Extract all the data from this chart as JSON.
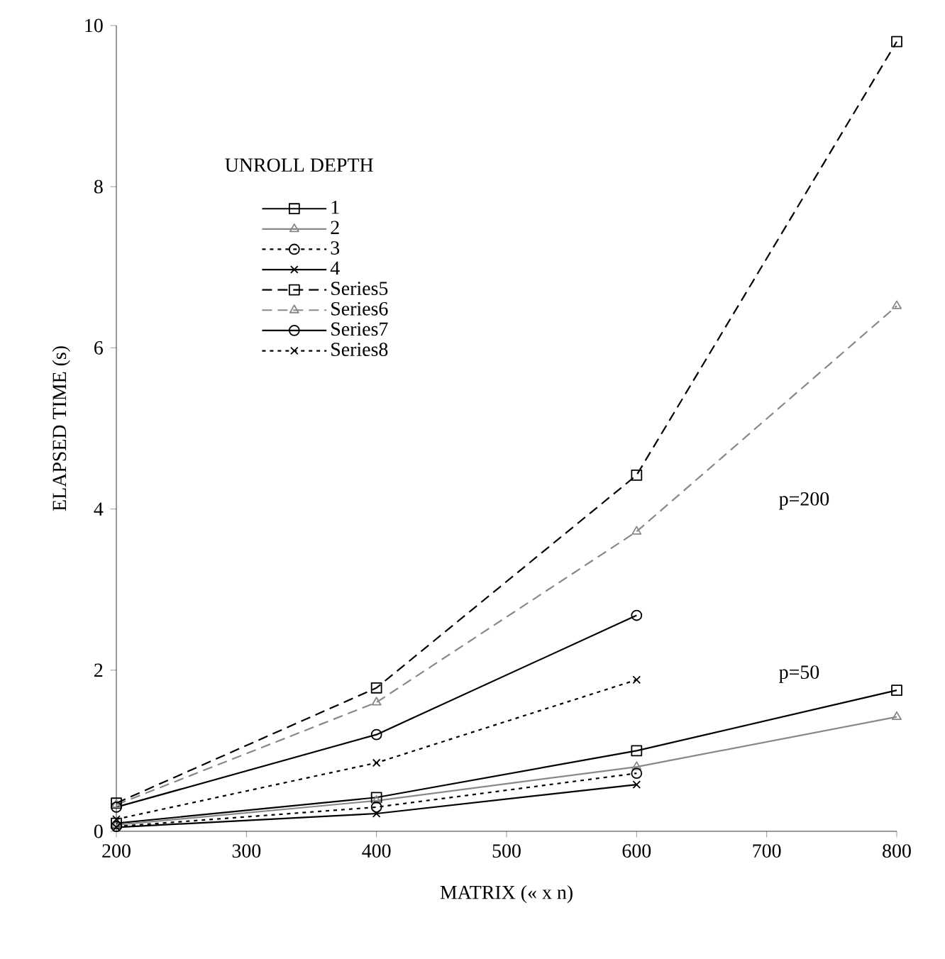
{
  "chart_data": {
    "type": "line",
    "xlabel": "MATRIX (« x n)",
    "ylabel": "ELAPSED TIME (s)",
    "legend_title": "UNROLL DEPTH",
    "x": [
      200,
      400,
      600,
      800
    ],
    "series": [
      {
        "name": "1",
        "color": "#000000",
        "marker": "square",
        "line_style": "solid",
        "values": [
          0.1,
          0.42,
          1.0,
          1.75
        ]
      },
      {
        "name": "2",
        "color": "#888888",
        "marker": "triangle",
        "line_style": "solid",
        "values": [
          0.08,
          0.38,
          0.8,
          1.42
        ]
      },
      {
        "name": "3",
        "color": "#000000",
        "marker": "circle",
        "line_style": "dotted",
        "values": [
          0.06,
          0.3,
          0.72,
          null
        ]
      },
      {
        "name": "4",
        "color": "#000000",
        "marker": "cross",
        "line_style": "solid",
        "values": [
          0.05,
          0.22,
          0.58,
          null
        ]
      },
      {
        "name": "Series5",
        "color": "#000000",
        "marker": "square",
        "line_style": "dashed",
        "values": [
          0.35,
          1.78,
          4.42,
          9.8
        ]
      },
      {
        "name": "Series6",
        "color": "#888888",
        "marker": "triangle",
        "line_style": "dashed",
        "values": [
          0.33,
          1.6,
          3.72,
          6.52
        ]
      },
      {
        "name": "Series7",
        "color": "#000000",
        "marker": "circle",
        "line_style": "solid",
        "values": [
          0.3,
          1.2,
          2.68,
          null
        ]
      },
      {
        "name": "Series8",
        "color": "#000000",
        "marker": "cross",
        "line_style": "dotted",
        "values": [
          0.15,
          0.85,
          1.88,
          null
        ]
      }
    ],
    "xlim": [
      200,
      800
    ],
    "ylim": [
      0,
      10
    ],
    "xticks": [
      200,
      300,
      400,
      500,
      600,
      700,
      800
    ],
    "yticks": [
      0,
      2,
      4,
      6,
      8,
      10
    ],
    "grid": false,
    "legend": "top left",
    "annotations": [
      "p=200",
      "p=50"
    ]
  }
}
